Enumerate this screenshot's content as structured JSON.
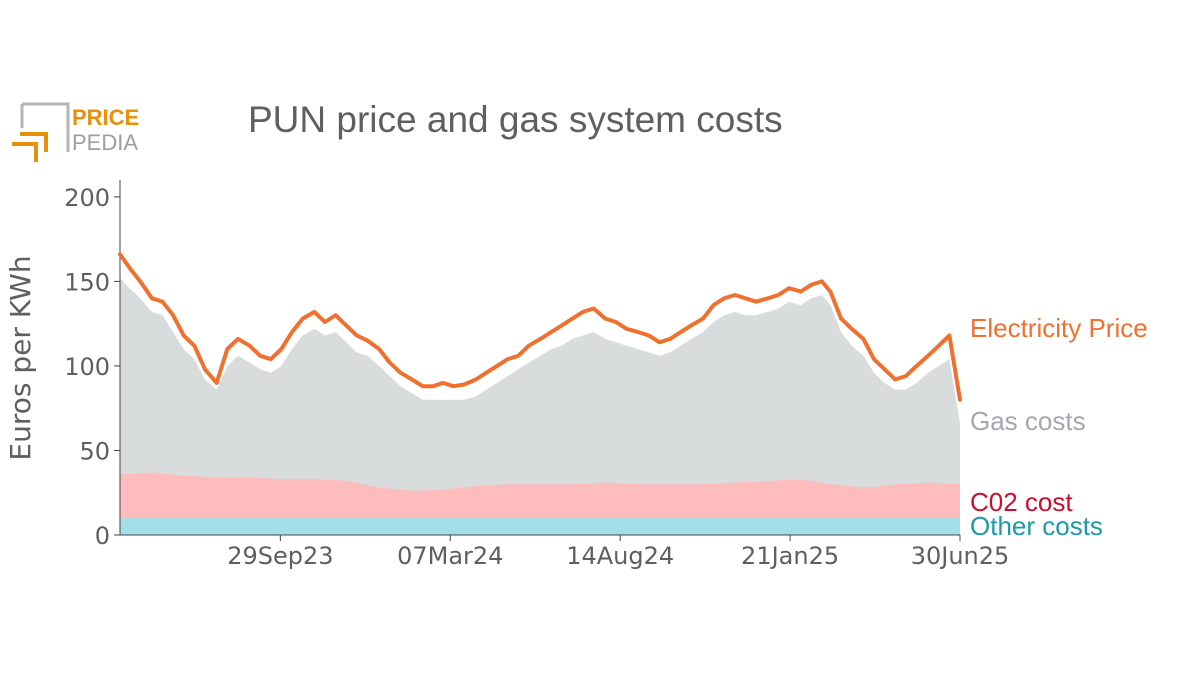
{
  "logo": {
    "line1": "PRICE",
    "line2": "PEDIA",
    "color_accent": "#e8900c",
    "color_gray": "#9e9e9e"
  },
  "chart_data": {
    "type": "area",
    "title": "PUN price and gas system costs",
    "xlabel": "",
    "ylabel": "Euros per KWh",
    "x_start": "2023-05-01",
    "x_end": "2025-06-30",
    "xticks": [
      {
        "date": "2023-09-29",
        "label": "29Sep23"
      },
      {
        "date": "2024-03-07",
        "label": "07Mar24"
      },
      {
        "date": "2024-08-14",
        "label": "14Aug24"
      },
      {
        "date": "2025-01-21",
        "label": "21Jan25"
      },
      {
        "date": "2025-06-30",
        "label": "30Jun25"
      }
    ],
    "ylim": [
      0,
      210
    ],
    "yticks": [
      0,
      50,
      100,
      150,
      200
    ],
    "grid": false,
    "legend": "right-end labels",
    "series": [
      {
        "name": "Electricity Price",
        "kind": "line",
        "color": "#f07030",
        "points": [
          [
            "2023-05-01",
            166
          ],
          [
            "2023-05-10",
            158
          ],
          [
            "2023-05-20",
            150
          ],
          [
            "2023-05-31",
            140
          ],
          [
            "2023-06-10",
            138
          ],
          [
            "2023-06-20",
            130
          ],
          [
            "2023-06-30",
            118
          ],
          [
            "2023-07-10",
            112
          ],
          [
            "2023-07-20",
            98
          ],
          [
            "2023-07-31",
            90
          ],
          [
            "2023-08-10",
            110
          ],
          [
            "2023-08-20",
            116
          ],
          [
            "2023-08-31",
            112
          ],
          [
            "2023-09-10",
            106
          ],
          [
            "2023-09-20",
            104
          ],
          [
            "2023-09-30",
            110
          ],
          [
            "2023-10-10",
            120
          ],
          [
            "2023-10-20",
            128
          ],
          [
            "2023-10-31",
            132
          ],
          [
            "2023-11-10",
            126
          ],
          [
            "2023-11-20",
            130
          ],
          [
            "2023-11-30",
            124
          ],
          [
            "2023-12-10",
            118
          ],
          [
            "2023-12-20",
            115
          ],
          [
            "2023-12-31",
            110
          ],
          [
            "2024-01-10",
            102
          ],
          [
            "2024-01-20",
            96
          ],
          [
            "2024-01-31",
            92
          ],
          [
            "2024-02-10",
            88
          ],
          [
            "2024-02-20",
            88
          ],
          [
            "2024-02-29",
            90
          ],
          [
            "2024-03-10",
            88
          ],
          [
            "2024-03-20",
            89
          ],
          [
            "2024-03-31",
            92
          ],
          [
            "2024-04-10",
            96
          ],
          [
            "2024-04-20",
            100
          ],
          [
            "2024-04-30",
            104
          ],
          [
            "2024-05-10",
            106
          ],
          [
            "2024-05-20",
            112
          ],
          [
            "2024-05-31",
            116
          ],
          [
            "2024-06-10",
            120
          ],
          [
            "2024-06-20",
            124
          ],
          [
            "2024-06-30",
            128
          ],
          [
            "2024-07-10",
            132
          ],
          [
            "2024-07-20",
            134
          ],
          [
            "2024-07-31",
            128
          ],
          [
            "2024-08-10",
            126
          ],
          [
            "2024-08-20",
            122
          ],
          [
            "2024-08-31",
            120
          ],
          [
            "2024-09-10",
            118
          ],
          [
            "2024-09-20",
            114
          ],
          [
            "2024-09-30",
            116
          ],
          [
            "2024-10-10",
            120
          ],
          [
            "2024-10-20",
            124
          ],
          [
            "2024-10-31",
            128
          ],
          [
            "2024-11-10",
            136
          ],
          [
            "2024-11-20",
            140
          ],
          [
            "2024-11-30",
            142
          ],
          [
            "2024-12-10",
            140
          ],
          [
            "2024-12-20",
            138
          ],
          [
            "2024-12-31",
            140
          ],
          [
            "2025-01-10",
            142
          ],
          [
            "2025-01-20",
            146
          ],
          [
            "2025-01-31",
            144
          ],
          [
            "2025-02-10",
            148
          ],
          [
            "2025-02-20",
            150
          ],
          [
            "2025-02-28",
            144
          ],
          [
            "2025-03-10",
            128
          ],
          [
            "2025-03-20",
            122
          ],
          [
            "2025-03-31",
            116
          ],
          [
            "2025-04-10",
            104
          ],
          [
            "2025-04-20",
            98
          ],
          [
            "2025-04-30",
            92
          ],
          [
            "2025-05-10",
            94
          ],
          [
            "2025-05-20",
            100
          ],
          [
            "2025-05-31",
            106
          ],
          [
            "2025-06-10",
            112
          ],
          [
            "2025-06-20",
            118
          ],
          [
            "2025-06-30",
            80
          ]
        ]
      },
      {
        "name": "Gas costs",
        "kind": "area",
        "color": "#d9dcdc",
        "label_color": "#a3a8ad",
        "points": [
          [
            "2023-05-01",
            152
          ],
          [
            "2023-05-10",
            146
          ],
          [
            "2023-05-20",
            140
          ],
          [
            "2023-05-31",
            132
          ],
          [
            "2023-06-10",
            130
          ],
          [
            "2023-06-20",
            120
          ],
          [
            "2023-06-30",
            110
          ],
          [
            "2023-07-10",
            104
          ],
          [
            "2023-07-20",
            92
          ],
          [
            "2023-07-31",
            86
          ],
          [
            "2023-08-10",
            100
          ],
          [
            "2023-08-20",
            106
          ],
          [
            "2023-08-31",
            102
          ],
          [
            "2023-09-10",
            98
          ],
          [
            "2023-09-20",
            96
          ],
          [
            "2023-09-30",
            100
          ],
          [
            "2023-10-10",
            110
          ],
          [
            "2023-10-20",
            118
          ],
          [
            "2023-10-31",
            122
          ],
          [
            "2023-11-10",
            118
          ],
          [
            "2023-11-20",
            120
          ],
          [
            "2023-11-30",
            114
          ],
          [
            "2023-12-10",
            108
          ],
          [
            "2023-12-20",
            106
          ],
          [
            "2023-12-31",
            100
          ],
          [
            "2024-01-10",
            94
          ],
          [
            "2024-01-20",
            88
          ],
          [
            "2024-01-31",
            84
          ],
          [
            "2024-02-10",
            80
          ],
          [
            "2024-02-20",
            80
          ],
          [
            "2024-02-29",
            80
          ],
          [
            "2024-03-10",
            80
          ],
          [
            "2024-03-20",
            80
          ],
          [
            "2024-03-31",
            82
          ],
          [
            "2024-04-10",
            86
          ],
          [
            "2024-04-20",
            90
          ],
          [
            "2024-04-30",
            94
          ],
          [
            "2024-05-10",
            98
          ],
          [
            "2024-05-20",
            102
          ],
          [
            "2024-05-31",
            106
          ],
          [
            "2024-06-10",
            110
          ],
          [
            "2024-06-20",
            112
          ],
          [
            "2024-06-30",
            116
          ],
          [
            "2024-07-10",
            118
          ],
          [
            "2024-07-20",
            120
          ],
          [
            "2024-07-31",
            116
          ],
          [
            "2024-08-10",
            114
          ],
          [
            "2024-08-20",
            112
          ],
          [
            "2024-08-31",
            110
          ],
          [
            "2024-09-10",
            108
          ],
          [
            "2024-09-20",
            106
          ],
          [
            "2024-09-30",
            108
          ],
          [
            "2024-10-10",
            112
          ],
          [
            "2024-10-20",
            116
          ],
          [
            "2024-10-31",
            120
          ],
          [
            "2024-11-10",
            126
          ],
          [
            "2024-11-20",
            130
          ],
          [
            "2024-11-30",
            132
          ],
          [
            "2024-12-10",
            130
          ],
          [
            "2024-12-20",
            130
          ],
          [
            "2024-12-31",
            132
          ],
          [
            "2025-01-10",
            134
          ],
          [
            "2025-01-20",
            138
          ],
          [
            "2025-01-31",
            136
          ],
          [
            "2025-02-10",
            140
          ],
          [
            "2025-02-20",
            142
          ],
          [
            "2025-02-28",
            136
          ],
          [
            "2025-03-10",
            120
          ],
          [
            "2025-03-20",
            112
          ],
          [
            "2025-03-31",
            106
          ],
          [
            "2025-04-10",
            96
          ],
          [
            "2025-04-20",
            90
          ],
          [
            "2025-04-30",
            86
          ],
          [
            "2025-05-10",
            86
          ],
          [
            "2025-05-20",
            90
          ],
          [
            "2025-05-31",
            96
          ],
          [
            "2025-06-10",
            100
          ],
          [
            "2025-06-20",
            104
          ],
          [
            "2025-06-30",
            66
          ]
        ]
      },
      {
        "name": "C02 cost",
        "kind": "area",
        "color": "#ffbcbd",
        "label_color": "#c8102e",
        "points": [
          [
            "2023-05-01",
            36
          ],
          [
            "2023-06-01",
            37
          ],
          [
            "2023-07-01",
            35
          ],
          [
            "2023-08-01",
            34
          ],
          [
            "2023-09-01",
            34
          ],
          [
            "2023-10-01",
            33
          ],
          [
            "2023-11-01",
            33
          ],
          [
            "2023-12-01",
            32
          ],
          [
            "2024-01-01",
            28
          ],
          [
            "2024-02-01",
            26
          ],
          [
            "2024-03-01",
            27
          ],
          [
            "2024-04-01",
            29
          ],
          [
            "2024-05-01",
            30
          ],
          [
            "2024-06-01",
            30
          ],
          [
            "2024-07-01",
            30
          ],
          [
            "2024-08-01",
            31
          ],
          [
            "2024-09-01",
            30
          ],
          [
            "2024-10-01",
            30
          ],
          [
            "2024-11-01",
            30
          ],
          [
            "2024-12-01",
            31
          ],
          [
            "2025-01-01",
            32
          ],
          [
            "2025-02-01",
            33
          ],
          [
            "2025-03-01",
            30
          ],
          [
            "2025-04-01",
            28
          ],
          [
            "2025-05-01",
            30
          ],
          [
            "2025-06-01",
            31
          ],
          [
            "2025-06-30",
            30
          ]
        ]
      },
      {
        "name": "Other costs",
        "kind": "area",
        "color": "#a3dfe8",
        "label_color": "#1b9aa8",
        "points": [
          [
            "2023-05-01",
            10
          ],
          [
            "2025-06-30",
            10
          ]
        ]
      }
    ]
  }
}
